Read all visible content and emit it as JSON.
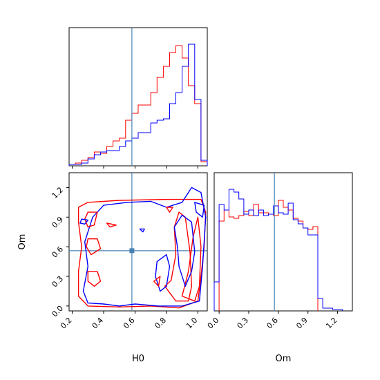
{
  "chart_data": {
    "type": "corner",
    "truth": {
      "H0": 0.58,
      "Om": 0.56
    },
    "truth_color": "#4682b4",
    "series_colors": {
      "red": "#ff0000",
      "blue": "#0000ff"
    },
    "panels": [
      {
        "id": "hist-H0",
        "type": "histogram",
        "xlim": [
          0.18,
          1.06
        ],
        "ylim": [
          0,
          1.0
        ],
        "series": [
          {
            "color": "red",
            "bins": [
              0.18,
              0.22,
              0.26,
              0.3,
              0.34,
              0.38,
              0.42,
              0.46,
              0.5,
              0.54,
              0.58,
              0.62,
              0.66,
              0.7,
              0.74,
              0.78,
              0.82,
              0.86,
              0.9,
              0.94,
              0.98,
              1.02,
              1.06
            ],
            "values": [
              0.01,
              0.02,
              0.04,
              0.06,
              0.1,
              0.09,
              0.14,
              0.18,
              0.2,
              0.33,
              0.38,
              0.44,
              0.44,
              0.53,
              0.64,
              0.72,
              0.82,
              0.87,
              0.78,
              0.58,
              0.45,
              0.03
            ]
          },
          {
            "color": "blue",
            "bins": [
              0.18,
              0.22,
              0.26,
              0.3,
              0.34,
              0.38,
              0.42,
              0.46,
              0.5,
              0.54,
              0.58,
              0.62,
              0.66,
              0.7,
              0.74,
              0.78,
              0.82,
              0.86,
              0.9,
              0.94,
              0.98,
              1.02,
              1.06
            ],
            "values": [
              0.01,
              0.01,
              0.02,
              0.05,
              0.08,
              0.1,
              0.11,
              0.11,
              0.14,
              0.18,
              0.2,
              0.24,
              0.24,
              0.31,
              0.33,
              0.34,
              0.45,
              0.53,
              0.72,
              0.88,
              0.48,
              0.04
            ]
          }
        ]
      },
      {
        "id": "hist-Om",
        "type": "histogram",
        "xlim": [
          -0.05,
          1.35
        ],
        "ylim": [
          0,
          1.0
        ],
        "series": [
          {
            "color": "red",
            "bins": [
              0.0,
              0.05,
              0.1,
              0.15,
              0.2,
              0.25,
              0.3,
              0.35,
              0.4,
              0.45,
              0.5,
              0.55,
              0.6,
              0.65,
              0.7,
              0.75,
              0.8,
              0.85,
              0.9,
              0.95,
              1.0
            ],
            "values": [
              0.65,
              0.73,
              0.68,
              0.67,
              0.69,
              0.72,
              0.69,
              0.77,
              0.71,
              0.71,
              0.7,
              0.69,
              0.8,
              0.75,
              0.73,
              0.67,
              0.65,
              0.6,
              0.59,
              0.61
            ]
          },
          {
            "color": "blue",
            "bins": [
              -0.05,
              0.0,
              0.05,
              0.1,
              0.15,
              0.2,
              0.25,
              0.3,
              0.35,
              0.4,
              0.45,
              0.5,
              0.55,
              0.6,
              0.65,
              0.7,
              0.75,
              0.8,
              0.85,
              0.9,
              0.95,
              1.0,
              1.05,
              1.1,
              1.15,
              1.2,
              1.25
            ],
            "values": [
              0.21,
              0.77,
              0.73,
              0.88,
              0.86,
              0.81,
              0.7,
              0.73,
              0.69,
              0.73,
              0.69,
              0.7,
              0.76,
              0.71,
              0.7,
              0.78,
              0.66,
              0.63,
              0.6,
              0.55,
              0.55,
              0.09,
              0.02,
              0.02,
              0.01,
              0.01
            ]
          }
        ]
      },
      {
        "id": "contour-H0-Om",
        "type": "contour",
        "xlim": [
          0.18,
          1.06
        ],
        "ylim": [
          -0.05,
          1.35
        ]
      }
    ],
    "xticks_H0": [
      "0.2",
      "0.4",
      "0.6",
      "0.8",
      "1.0"
    ],
    "xticks_Om": [
      "0.0",
      "0.3",
      "0.6",
      "0.9",
      "1.2"
    ],
    "yticks_Om": [
      "0.0",
      "0.3",
      "0.6",
      "0.9",
      "1.2"
    ],
    "xlabel_H0": "H0",
    "xlabel_Om": "Om",
    "ylabel_Om": "Om"
  }
}
